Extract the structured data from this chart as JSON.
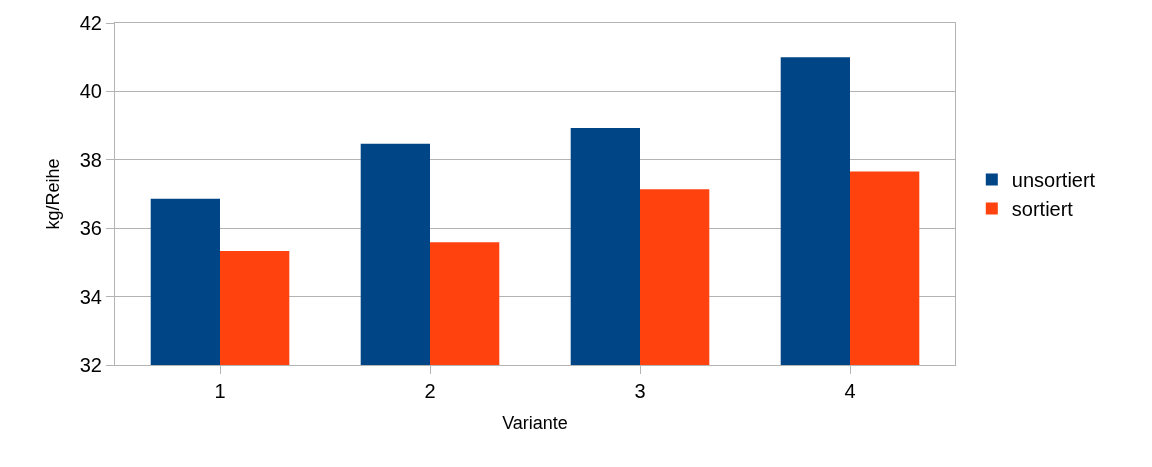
{
  "chart_data": {
    "type": "bar",
    "xlabel": "Variante",
    "ylabel": "kg/Reihe",
    "categories": [
      "1",
      "2",
      "3",
      "4"
    ],
    "series": [
      {
        "name": "unsortiert",
        "color": "#004586",
        "values": [
          36.86,
          38.47,
          38.93,
          41.0
        ]
      },
      {
        "name": "sortiert",
        "color": "#ff420e",
        "values": [
          35.33,
          35.59,
          37.14,
          37.66
        ]
      }
    ],
    "ylim": [
      32,
      42
    ],
    "yticks": [
      32,
      34,
      36,
      38,
      40,
      42
    ],
    "grid": "y",
    "legend": "right"
  }
}
